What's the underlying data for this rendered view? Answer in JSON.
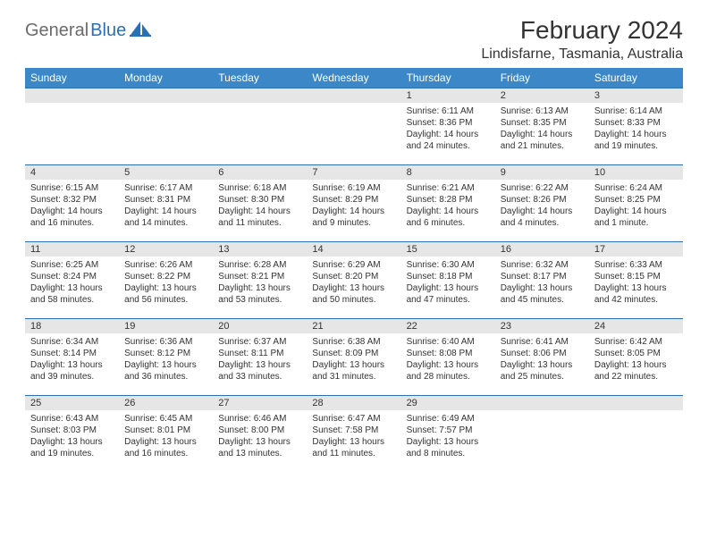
{
  "logo": {
    "part1": "General",
    "part2": "Blue"
  },
  "title": "February 2024",
  "location": "Lindisfarne, Tasmania, Australia",
  "header_bg": "#3b87c8",
  "border_color": "#2b6fb5",
  "daynum_bg": "#e6e6e6",
  "dow": [
    "Sunday",
    "Monday",
    "Tuesday",
    "Wednesday",
    "Thursday",
    "Friday",
    "Saturday"
  ],
  "weeks": [
    [
      null,
      null,
      null,
      null,
      {
        "n": "1",
        "sr": "Sunrise: 6:11 AM",
        "ss": "Sunset: 8:36 PM",
        "dl1": "Daylight: 14 hours",
        "dl2": "and 24 minutes."
      },
      {
        "n": "2",
        "sr": "Sunrise: 6:13 AM",
        "ss": "Sunset: 8:35 PM",
        "dl1": "Daylight: 14 hours",
        "dl2": "and 21 minutes."
      },
      {
        "n": "3",
        "sr": "Sunrise: 6:14 AM",
        "ss": "Sunset: 8:33 PM",
        "dl1": "Daylight: 14 hours",
        "dl2": "and 19 minutes."
      }
    ],
    [
      {
        "n": "4",
        "sr": "Sunrise: 6:15 AM",
        "ss": "Sunset: 8:32 PM",
        "dl1": "Daylight: 14 hours",
        "dl2": "and 16 minutes."
      },
      {
        "n": "5",
        "sr": "Sunrise: 6:17 AM",
        "ss": "Sunset: 8:31 PM",
        "dl1": "Daylight: 14 hours",
        "dl2": "and 14 minutes."
      },
      {
        "n": "6",
        "sr": "Sunrise: 6:18 AM",
        "ss": "Sunset: 8:30 PM",
        "dl1": "Daylight: 14 hours",
        "dl2": "and 11 minutes."
      },
      {
        "n": "7",
        "sr": "Sunrise: 6:19 AM",
        "ss": "Sunset: 8:29 PM",
        "dl1": "Daylight: 14 hours",
        "dl2": "and 9 minutes."
      },
      {
        "n": "8",
        "sr": "Sunrise: 6:21 AM",
        "ss": "Sunset: 8:28 PM",
        "dl1": "Daylight: 14 hours",
        "dl2": "and 6 minutes."
      },
      {
        "n": "9",
        "sr": "Sunrise: 6:22 AM",
        "ss": "Sunset: 8:26 PM",
        "dl1": "Daylight: 14 hours",
        "dl2": "and 4 minutes."
      },
      {
        "n": "10",
        "sr": "Sunrise: 6:24 AM",
        "ss": "Sunset: 8:25 PM",
        "dl1": "Daylight: 14 hours",
        "dl2": "and 1 minute."
      }
    ],
    [
      {
        "n": "11",
        "sr": "Sunrise: 6:25 AM",
        "ss": "Sunset: 8:24 PM",
        "dl1": "Daylight: 13 hours",
        "dl2": "and 58 minutes."
      },
      {
        "n": "12",
        "sr": "Sunrise: 6:26 AM",
        "ss": "Sunset: 8:22 PM",
        "dl1": "Daylight: 13 hours",
        "dl2": "and 56 minutes."
      },
      {
        "n": "13",
        "sr": "Sunrise: 6:28 AM",
        "ss": "Sunset: 8:21 PM",
        "dl1": "Daylight: 13 hours",
        "dl2": "and 53 minutes."
      },
      {
        "n": "14",
        "sr": "Sunrise: 6:29 AM",
        "ss": "Sunset: 8:20 PM",
        "dl1": "Daylight: 13 hours",
        "dl2": "and 50 minutes."
      },
      {
        "n": "15",
        "sr": "Sunrise: 6:30 AM",
        "ss": "Sunset: 8:18 PM",
        "dl1": "Daylight: 13 hours",
        "dl2": "and 47 minutes."
      },
      {
        "n": "16",
        "sr": "Sunrise: 6:32 AM",
        "ss": "Sunset: 8:17 PM",
        "dl1": "Daylight: 13 hours",
        "dl2": "and 45 minutes."
      },
      {
        "n": "17",
        "sr": "Sunrise: 6:33 AM",
        "ss": "Sunset: 8:15 PM",
        "dl1": "Daylight: 13 hours",
        "dl2": "and 42 minutes."
      }
    ],
    [
      {
        "n": "18",
        "sr": "Sunrise: 6:34 AM",
        "ss": "Sunset: 8:14 PM",
        "dl1": "Daylight: 13 hours",
        "dl2": "and 39 minutes."
      },
      {
        "n": "19",
        "sr": "Sunrise: 6:36 AM",
        "ss": "Sunset: 8:12 PM",
        "dl1": "Daylight: 13 hours",
        "dl2": "and 36 minutes."
      },
      {
        "n": "20",
        "sr": "Sunrise: 6:37 AM",
        "ss": "Sunset: 8:11 PM",
        "dl1": "Daylight: 13 hours",
        "dl2": "and 33 minutes."
      },
      {
        "n": "21",
        "sr": "Sunrise: 6:38 AM",
        "ss": "Sunset: 8:09 PM",
        "dl1": "Daylight: 13 hours",
        "dl2": "and 31 minutes."
      },
      {
        "n": "22",
        "sr": "Sunrise: 6:40 AM",
        "ss": "Sunset: 8:08 PM",
        "dl1": "Daylight: 13 hours",
        "dl2": "and 28 minutes."
      },
      {
        "n": "23",
        "sr": "Sunrise: 6:41 AM",
        "ss": "Sunset: 8:06 PM",
        "dl1": "Daylight: 13 hours",
        "dl2": "and 25 minutes."
      },
      {
        "n": "24",
        "sr": "Sunrise: 6:42 AM",
        "ss": "Sunset: 8:05 PM",
        "dl1": "Daylight: 13 hours",
        "dl2": "and 22 minutes."
      }
    ],
    [
      {
        "n": "25",
        "sr": "Sunrise: 6:43 AM",
        "ss": "Sunset: 8:03 PM",
        "dl1": "Daylight: 13 hours",
        "dl2": "and 19 minutes."
      },
      {
        "n": "26",
        "sr": "Sunrise: 6:45 AM",
        "ss": "Sunset: 8:01 PM",
        "dl1": "Daylight: 13 hours",
        "dl2": "and 16 minutes."
      },
      {
        "n": "27",
        "sr": "Sunrise: 6:46 AM",
        "ss": "Sunset: 8:00 PM",
        "dl1": "Daylight: 13 hours",
        "dl2": "and 13 minutes."
      },
      {
        "n": "28",
        "sr": "Sunrise: 6:47 AM",
        "ss": "Sunset: 7:58 PM",
        "dl1": "Daylight: 13 hours",
        "dl2": "and 11 minutes."
      },
      {
        "n": "29",
        "sr": "Sunrise: 6:49 AM",
        "ss": "Sunset: 7:57 PM",
        "dl1": "Daylight: 13 hours",
        "dl2": "and 8 minutes."
      },
      null,
      null
    ]
  ]
}
